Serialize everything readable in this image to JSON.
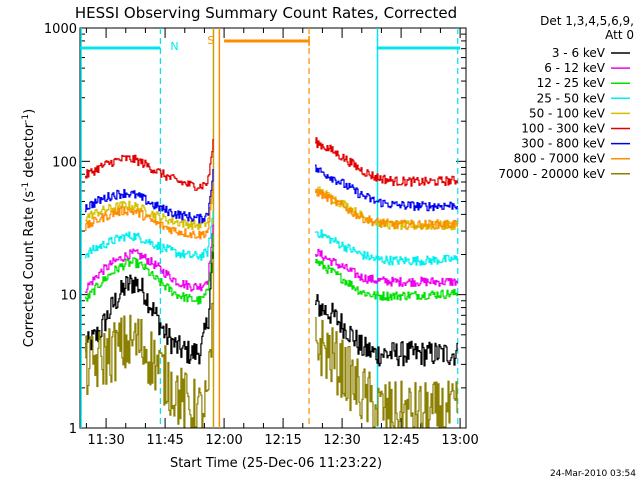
{
  "chart_data": {
    "type": "line",
    "title": "HESSI Observing Summary Count Rates, Corrected",
    "xlabel": "Start Time (25-Dec-06 11:23:22)",
    "ylabel_main": "Corrected Count Rate (s",
    "ylabel_sup1": "-1",
    "ylabel_mid": " detector",
    "ylabel_sup2": "-1",
    "ylabel_end": ")",
    "yscale": "log",
    "ylim": [
      1,
      1000
    ],
    "xlim": [
      "11:23:22",
      "13:01:30"
    ],
    "x_ticks": [
      "11:30",
      "11:45",
      "12:00",
      "12:15",
      "12:30",
      "12:45",
      "13:00"
    ],
    "y_ticks": [
      "1",
      "10",
      "100",
      "1000"
    ],
    "legend_title": "Det 1,3,4,5,6,9,",
    "legend_subtitle": "Att 0",
    "footer": "24-Mar-2010 03:54",
    "markers": {
      "night_label": "N",
      "saa_label": "S",
      "night_color": "#00e5ee",
      "saa_color": "#ff8c00",
      "flare_color": "#c8a000",
      "night_bars": [
        [
          11.39,
          11.73
        ],
        [
          12.65,
          13.0
        ]
      ],
      "night_lines": [
        11.39,
        11.73,
        12.65,
        12.99
      ],
      "saa_line_solid": 11.98,
      "saa_line_dashed": 12.36,
      "saa_bar": [
        12.0,
        12.36
      ],
      "flare_line": 11.955
    },
    "series": [
      {
        "name": "3 - 6 keV",
        "color": "#000000",
        "seg1": [
          [
            11.41,
            4.0
          ],
          [
            11.47,
            5.2
          ],
          [
            11.53,
            8.5
          ],
          [
            11.58,
            11.5
          ],
          [
            11.62,
            12.5
          ],
          [
            11.66,
            10.5
          ],
          [
            11.7,
            7.5
          ],
          [
            11.75,
            5.0
          ],
          [
            11.8,
            4.0
          ],
          [
            11.86,
            3.6
          ],
          [
            11.9,
            3.8
          ],
          [
            11.93,
            6.5
          ],
          [
            11.955,
            25
          ]
        ],
        "seg2": [
          [
            12.385,
            8.5
          ],
          [
            12.45,
            7.2
          ],
          [
            12.52,
            5.5
          ],
          [
            12.58,
            4.0
          ],
          [
            12.64,
            3.6
          ],
          [
            12.72,
            3.6
          ],
          [
            12.85,
            3.6
          ],
          [
            12.99,
            3.6
          ]
        ]
      },
      {
        "name": "6 - 12 keV",
        "color": "#ee00ee",
        "seg1": [
          [
            11.41,
            11.0
          ],
          [
            11.47,
            14.5
          ],
          [
            11.53,
            17.5
          ],
          [
            11.58,
            19.5
          ],
          [
            11.62,
            20.5
          ],
          [
            11.66,
            19.0
          ],
          [
            11.7,
            17.0
          ],
          [
            11.75,
            14.5
          ],
          [
            11.8,
            12.5
          ],
          [
            11.86,
            11.5
          ],
          [
            11.9,
            11.5
          ],
          [
            11.93,
            13.0
          ],
          [
            11.955,
            35
          ]
        ],
        "seg2": [
          [
            12.385,
            21.0
          ],
          [
            12.45,
            18.0
          ],
          [
            12.52,
            15.5
          ],
          [
            12.58,
            13.5
          ],
          [
            12.64,
            12.8
          ],
          [
            12.72,
            12.5
          ],
          [
            12.85,
            12.5
          ],
          [
            12.99,
            12.5
          ]
        ]
      },
      {
        "name": "12 - 25 keV",
        "color": "#00e000",
        "seg1": [
          [
            11.41,
            9.0
          ],
          [
            11.47,
            12.0
          ],
          [
            11.53,
            15.0
          ],
          [
            11.58,
            17.0
          ],
          [
            11.62,
            17.5
          ],
          [
            11.66,
            16.0
          ],
          [
            11.7,
            13.5
          ],
          [
            11.75,
            11.5
          ],
          [
            11.8,
            10.0
          ],
          [
            11.86,
            9.2
          ],
          [
            11.9,
            9.0
          ],
          [
            11.93,
            10.5
          ],
          [
            11.955,
            30
          ]
        ],
        "seg2": [
          [
            12.385,
            18.0
          ],
          [
            12.45,
            15.0
          ],
          [
            12.52,
            12.5
          ],
          [
            12.58,
            10.5
          ],
          [
            12.64,
            9.8
          ],
          [
            12.72,
            9.8
          ],
          [
            12.85,
            10.0
          ],
          [
            12.99,
            10.2
          ]
        ]
      },
      {
        "name": "25 - 50 keV",
        "color": "#00eeee",
        "seg1": [
          [
            11.41,
            20.0
          ],
          [
            11.47,
            23.0
          ],
          [
            11.53,
            25.5
          ],
          [
            11.58,
            27.5
          ],
          [
            11.62,
            27.5
          ],
          [
            11.66,
            26.0
          ],
          [
            11.7,
            24.0
          ],
          [
            11.75,
            22.0
          ],
          [
            11.8,
            20.5
          ],
          [
            11.86,
            19.5
          ],
          [
            11.9,
            19.5
          ],
          [
            11.93,
            21.0
          ],
          [
            11.955,
            45
          ]
        ],
        "seg2": [
          [
            12.385,
            30.0
          ],
          [
            12.45,
            26.0
          ],
          [
            12.52,
            22.5
          ],
          [
            12.58,
            20.0
          ],
          [
            12.64,
            18.5
          ],
          [
            12.72,
            18.0
          ],
          [
            12.85,
            18.0
          ],
          [
            12.99,
            18.5
          ]
        ]
      },
      {
        "name": "50 - 100 keV",
        "color": "#d4c000",
        "seg1": [
          [
            11.41,
            38.0
          ],
          [
            11.47,
            42.0
          ],
          [
            11.53,
            45.0
          ],
          [
            11.58,
            47.0
          ],
          [
            11.62,
            46.0
          ],
          [
            11.66,
            43.0
          ],
          [
            11.7,
            40.0
          ],
          [
            11.75,
            37.0
          ],
          [
            11.8,
            35.0
          ],
          [
            11.86,
            33.5
          ],
          [
            11.9,
            33.0
          ],
          [
            11.93,
            35.0
          ],
          [
            11.955,
            60
          ]
        ],
        "seg2": [
          [
            12.385,
            62.0
          ],
          [
            12.45,
            54.0
          ],
          [
            12.52,
            46.0
          ],
          [
            12.58,
            39.0
          ],
          [
            12.64,
            35.0
          ],
          [
            12.72,
            33.0
          ],
          [
            12.85,
            33.0
          ],
          [
            12.99,
            33.0
          ]
        ]
      },
      {
        "name": "100 - 300 keV",
        "color": "#e00000",
        "seg1": [
          [
            11.41,
            78.0
          ],
          [
            11.47,
            90.0
          ],
          [
            11.53,
            100.0
          ],
          [
            11.58,
            105.0
          ],
          [
            11.62,
            103.0
          ],
          [
            11.66,
            96.0
          ],
          [
            11.7,
            87.0
          ],
          [
            11.75,
            78.0
          ],
          [
            11.8,
            71.0
          ],
          [
            11.86,
            66.0
          ],
          [
            11.9,
            65.0
          ],
          [
            11.93,
            70.0
          ],
          [
            11.955,
            150
          ]
        ],
        "seg2": [
          [
            12.385,
            140.0
          ],
          [
            12.45,
            122.0
          ],
          [
            12.52,
            102.0
          ],
          [
            12.58,
            86.0
          ],
          [
            12.64,
            76.0
          ],
          [
            12.72,
            71.0
          ],
          [
            12.85,
            70.0
          ],
          [
            12.99,
            72.0
          ]
        ]
      },
      {
        "name": "300 - 800 keV",
        "color": "#0000ee",
        "seg1": [
          [
            11.41,
            45.0
          ],
          [
            11.47,
            51.0
          ],
          [
            11.53,
            56.0
          ],
          [
            11.58,
            58.0
          ],
          [
            11.62,
            56.0
          ],
          [
            11.66,
            52.0
          ],
          [
            11.7,
            47.0
          ],
          [
            11.75,
            43.0
          ],
          [
            11.8,
            40.0
          ],
          [
            11.86,
            38.0
          ],
          [
            11.9,
            37.0
          ],
          [
            11.93,
            40.0
          ],
          [
            11.955,
            95
          ]
        ],
        "seg2": [
          [
            12.385,
            88.0
          ],
          [
            12.45,
            77.0
          ],
          [
            12.52,
            65.0
          ],
          [
            12.58,
            56.0
          ],
          [
            12.64,
            50.0
          ],
          [
            12.72,
            47.0
          ],
          [
            12.85,
            46.0
          ],
          [
            12.99,
            47.0
          ]
        ]
      },
      {
        "name": "800 - 7000 keV",
        "color": "#ff8c00",
        "seg1": [
          [
            11.41,
            32.0
          ],
          [
            11.47,
            37.0
          ],
          [
            11.53,
            41.0
          ],
          [
            11.58,
            43.0
          ],
          [
            11.62,
            42.0
          ],
          [
            11.66,
            39.0
          ],
          [
            11.7,
            35.0
          ],
          [
            11.75,
            32.0
          ],
          [
            11.8,
            30.0
          ],
          [
            11.86,
            28.5
          ],
          [
            11.9,
            28.0
          ],
          [
            11.93,
            30.0
          ],
          [
            11.955,
            70
          ]
        ],
        "seg2": [
          [
            12.385,
            60.0
          ],
          [
            12.45,
            52.0
          ],
          [
            12.52,
            44.0
          ],
          [
            12.58,
            38.0
          ],
          [
            12.64,
            35.0
          ],
          [
            12.72,
            33.5
          ],
          [
            12.85,
            33.5
          ],
          [
            12.99,
            34.0
          ]
        ]
      },
      {
        "name": "7000 - 20000 keV",
        "color": "#8b8000",
        "seg1": [
          [
            11.41,
            2.8
          ],
          [
            11.47,
            3.2
          ],
          [
            11.53,
            3.8
          ],
          [
            11.58,
            4.2
          ],
          [
            11.62,
            4.5
          ],
          [
            11.66,
            4.0
          ],
          [
            11.7,
            3.2
          ],
          [
            11.75,
            2.4
          ],
          [
            11.8,
            1.8
          ],
          [
            11.86,
            1.4
          ],
          [
            11.9,
            1.3
          ],
          [
            11.93,
            1.6
          ],
          [
            11.955,
            8
          ]
        ],
        "seg2": [
          [
            12.385,
            4.5
          ],
          [
            12.45,
            3.5
          ],
          [
            12.52,
            2.5
          ],
          [
            12.58,
            1.8
          ],
          [
            12.64,
            1.4
          ],
          [
            12.72,
            1.3
          ],
          [
            12.85,
            1.3
          ],
          [
            12.99,
            1.3
          ]
        ]
      }
    ]
  }
}
